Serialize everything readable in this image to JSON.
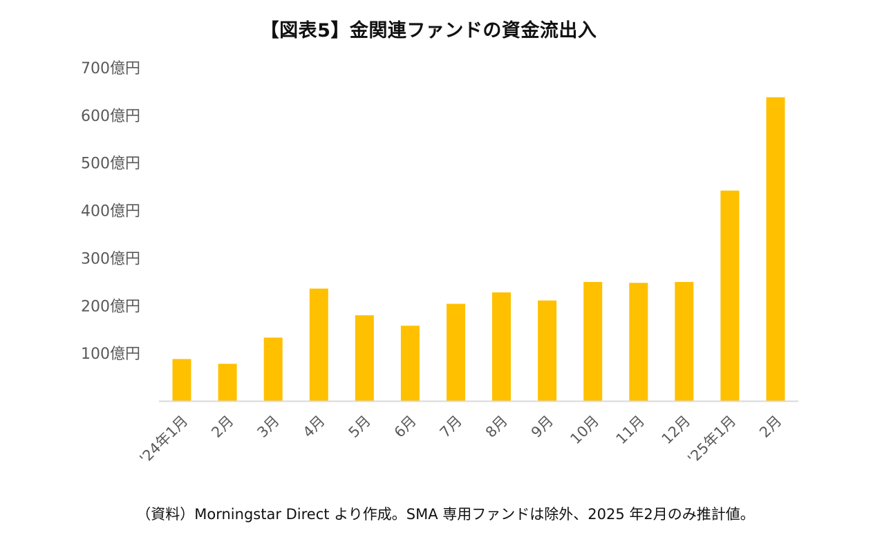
{
  "title": "【図表5】金関連ファンドの資金流出入",
  "source_note": "（資料）Morningstar Direct より作成。SMA 専用ファンドは除外、2025 年2月のみ推計値。",
  "colors": {
    "bar": "#FFC000",
    "axis": "#D9D9D9",
    "tick_text": "#595959"
  },
  "chart_data": {
    "type": "bar",
    "title": "【図表5】金関連ファンドの資金流出入",
    "categories": [
      "'24年1月",
      "2月",
      "3月",
      "4月",
      "5月",
      "6月",
      "7月",
      "8月",
      "9月",
      "10月",
      "11月",
      "12月",
      "'25年1月",
      "2月"
    ],
    "values": [
      88,
      78,
      133,
      236,
      180,
      158,
      204,
      228,
      211,
      250,
      248,
      250,
      442,
      638
    ],
    "y_ticks": [
      {
        "value": 100,
        "label": "100億円"
      },
      {
        "value": 200,
        "label": "200億円"
      },
      {
        "value": 300,
        "label": "300億円"
      },
      {
        "value": 400,
        "label": "400億円"
      },
      {
        "value": 500,
        "label": "500億円"
      },
      {
        "value": 600,
        "label": "600億円"
      },
      {
        "value": 700,
        "label": "700億円"
      }
    ],
    "ylim": [
      0,
      700
    ],
    "grid": false,
    "legend": "none"
  }
}
